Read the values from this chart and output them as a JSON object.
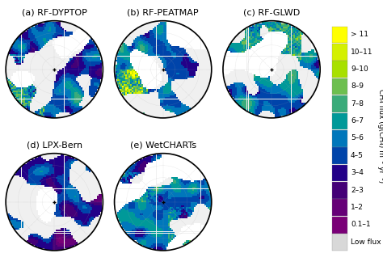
{
  "panel_labels": [
    "(a) RF-DYPTOP",
    "(b) RF-PEATMAP",
    "(c) RF-GLWD",
    "(d) LPX-Bern",
    "(e) WetCHARTs"
  ],
  "colorbar_labels": [
    "> 11",
    "10–11",
    "9–10",
    "8–9",
    "7–8",
    "6–7",
    "5–6",
    "4–5",
    "3–4",
    "2–3",
    "1–2",
    "0.1–1",
    "Low flux"
  ],
  "colorbar_colors": [
    "#ffff00",
    "#d4f000",
    "#a8e000",
    "#6dbf4f",
    "#3aab7a",
    "#009999",
    "#0077bb",
    "#0044aa",
    "#220088",
    "#440077",
    "#660077",
    "#7a0077",
    "#d8d8d8"
  ],
  "ylabel": "CH₄ flux (g(CH₄) m⁻² yr⁻¹)",
  "bg_ocean": "#f0f0f0",
  "bg_land": "#ffffff",
  "grid_color": "#aaaaaa",
  "border_color": "#000000",
  "title_fontsize": 8,
  "colorbar_fontsize": 6.5,
  "label_fontsize": 6.5
}
